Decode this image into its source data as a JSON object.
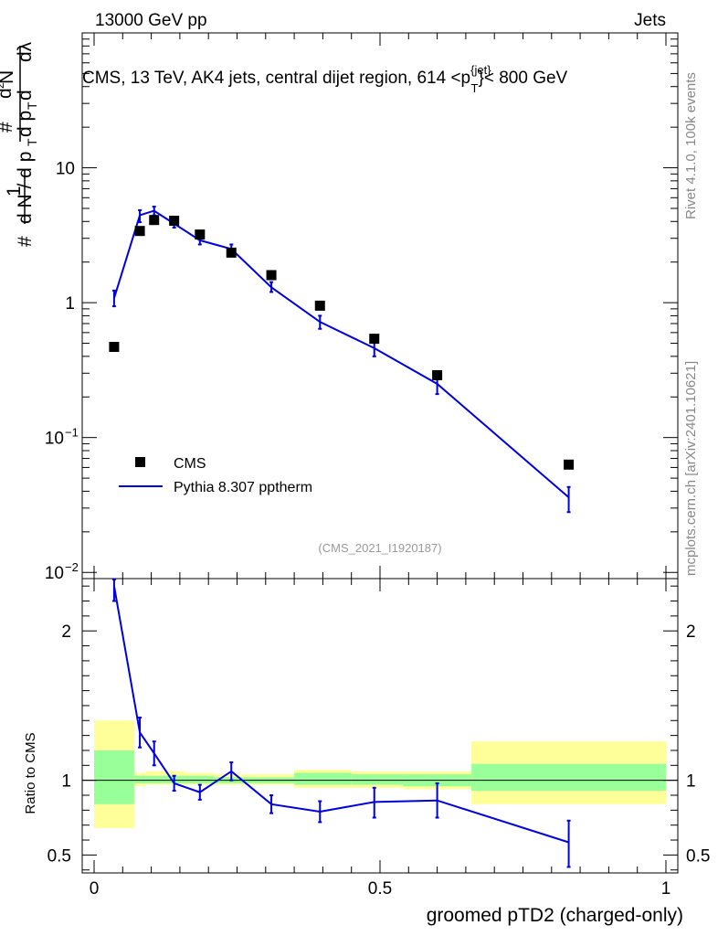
{
  "header": {
    "left": "13000 GeV pp",
    "right": "Jets"
  },
  "side_labels": {
    "rivet": "Rivet 4.1.0,  100k events",
    "mcplots": "mcplots.cern.ch [arXiv:2401.10621]"
  },
  "main_plot": {
    "title_prefix": "CMS, 13 TeV, AK4 jets, central dijet region, 614 <p",
    "title_sup": "{jet}",
    "title_sub": "T",
    "title_suffix": "}< 800 GeV",
    "analysis_tag": "(CMS_2021_I1920187)",
    "ylabel": "1/(dN/dpT) d²N/(dpT dλ)"
  },
  "ratio_plot": {
    "ylabel": "Ratio to CMS"
  },
  "chart_data": {
    "type": "scatter",
    "xlabel": "groomed pTD2 (charged-only)",
    "xlim": [
      0,
      1
    ],
    "x_ticks": [
      {
        "value": 0,
        "label": "0"
      },
      {
        "value": 0.5,
        "label": "0.5"
      },
      {
        "value": 1,
        "label": "1"
      }
    ],
    "main": {
      "yscale": "log",
      "ylim": [
        0.009,
        100
      ],
      "y_ticks": [
        {
          "value": 10,
          "label": "10"
        },
        {
          "value": 1,
          "label": "1"
        },
        {
          "value": 0.1,
          "label": "10",
          "exp": "−1"
        },
        {
          "value": 0.01,
          "label": "10",
          "exp": "−2"
        }
      ]
    },
    "ratio": {
      "ylim": [
        0.38,
        2.35
      ],
      "y_ticks": [
        {
          "value": 2,
          "label": "2"
        },
        {
          "value": 1,
          "label": "1"
        },
        {
          "value": 0.5,
          "label": "0.5"
        }
      ]
    },
    "bins": [
      {
        "lo": 0.0,
        "hi": 0.07
      },
      {
        "lo": 0.07,
        "hi": 0.09
      },
      {
        "lo": 0.09,
        "hi": 0.12
      },
      {
        "lo": 0.12,
        "hi": 0.16
      },
      {
        "lo": 0.16,
        "hi": 0.21
      },
      {
        "lo": 0.21,
        "hi": 0.27
      },
      {
        "lo": 0.27,
        "hi": 0.35
      },
      {
        "lo": 0.35,
        "hi": 0.45
      },
      {
        "lo": 0.45,
        "hi": 0.54
      },
      {
        "lo": 0.54,
        "hi": 0.66
      },
      {
        "lo": 0.66,
        "hi": 1.0
      }
    ],
    "series": [
      {
        "name": "CMS",
        "marker": "square",
        "color": "#000000",
        "x": [
          0.035,
          0.08,
          0.105,
          0.14,
          0.185,
          0.24,
          0.31,
          0.395,
          0.49,
          0.6,
          0.83
        ],
        "values": [
          0.47,
          3.4,
          4.1,
          4.05,
          3.2,
          2.35,
          1.6,
          0.95,
          0.54,
          0.29,
          0.063
        ]
      },
      {
        "name": "Pythia 8.307 pptherm",
        "marker": "line",
        "color": "#0000dd",
        "x": [
          0.035,
          0.08,
          0.105,
          0.14,
          0.185,
          0.24,
          0.31,
          0.395,
          0.49,
          0.6,
          0.83
        ],
        "values": [
          1.08,
          4.45,
          4.8,
          3.85,
          2.9,
          2.5,
          1.3,
          0.72,
          0.46,
          0.25,
          0.036
        ],
        "err_lo": [
          0.94,
          3.95,
          4.45,
          3.6,
          2.7,
          2.32,
          1.2,
          0.64,
          0.4,
          0.21,
          0.028
        ],
        "err_hi": [
          1.23,
          4.85,
          5.15,
          4.1,
          3.1,
          2.7,
          1.42,
          0.8,
          0.52,
          0.29,
          0.043
        ]
      }
    ],
    "ratio_series": {
      "name": "Pythia 8.307 pptherm / CMS",
      "x": [
        0.035,
        0.08,
        0.105,
        0.14,
        0.185,
        0.24,
        0.31,
        0.395,
        0.49,
        0.6,
        0.83
      ],
      "values": [
        2.3,
        1.32,
        1.18,
        0.98,
        0.92,
        1.06,
        0.84,
        0.79,
        0.855,
        0.865,
        0.585
      ],
      "err_lo": [
        2.2,
        1.22,
        1.1,
        0.93,
        0.87,
        1.0,
        0.78,
        0.72,
        0.75,
        0.75,
        0.42
      ],
      "err_hi": [
        2.4,
        1.42,
        1.26,
        1.03,
        0.97,
        1.12,
        0.9,
        0.86,
        0.95,
        0.98,
        0.73
      ]
    },
    "uncertainty_bands": {
      "yellow_color": "#ffff99",
      "green_color": "#99ff99",
      "yellow": [
        [
          0.68,
          1.4
        ],
        [
          0.96,
          1.05
        ],
        [
          0.97,
          1.06
        ],
        [
          0.97,
          1.06
        ],
        [
          0.97,
          1.05
        ],
        [
          0.97,
          1.04
        ],
        [
          0.97,
          1.04
        ],
        [
          0.95,
          1.07
        ],
        [
          0.95,
          1.06
        ],
        [
          0.94,
          1.06
        ],
        [
          0.84,
          1.26
        ]
      ],
      "green": [
        [
          0.84,
          1.2
        ],
        [
          0.98,
          1.03
        ],
        [
          0.98,
          1.03
        ],
        [
          0.98,
          1.03
        ],
        [
          0.98,
          1.03
        ],
        [
          0.98,
          1.02
        ],
        [
          0.98,
          1.02
        ],
        [
          0.97,
          1.05
        ],
        [
          0.97,
          1.04
        ],
        [
          0.96,
          1.04
        ],
        [
          0.93,
          1.11
        ]
      ]
    },
    "legend": [
      {
        "label": "CMS",
        "marker": "square"
      },
      {
        "label": "Pythia 8.307 pptherm",
        "marker": "line"
      }
    ]
  }
}
